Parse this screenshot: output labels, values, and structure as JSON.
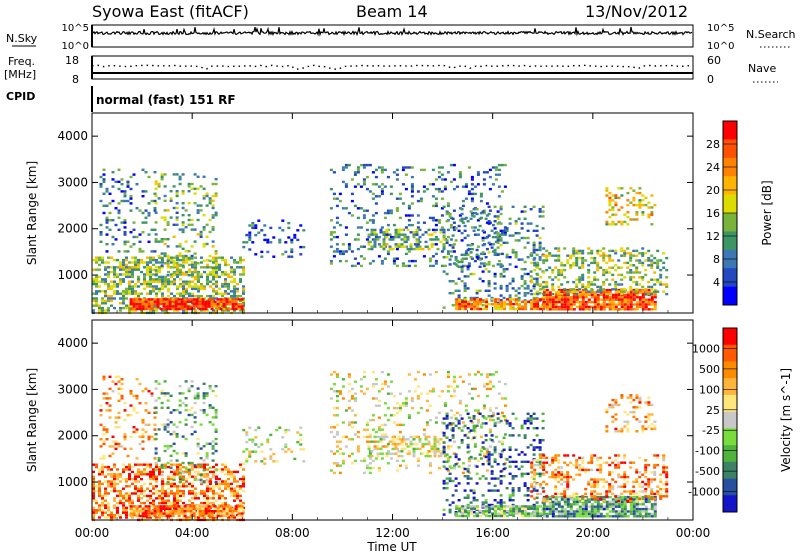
{
  "header": {
    "station": "Syowa East (fitACF)",
    "beam": "Beam 14",
    "date": "13/Nov/2012"
  },
  "noise_panel": {
    "left_label": "N.Sky",
    "right_label": "N.Search",
    "left_ticks": [
      "10^5",
      "10^0"
    ],
    "right_ticks": [
      "10^5",
      "10^0"
    ]
  },
  "freq_panel": {
    "left_label_line1": "Freq.",
    "left_label_line2": "[MHz]",
    "left_ticks": [
      "18",
      "8"
    ],
    "right_label": "Nave",
    "right_ticks": [
      "60",
      "0"
    ]
  },
  "cpid": {
    "label": "CPID",
    "value": "normal (fast) 151 RF"
  },
  "chart_data": [
    {
      "type": "heatmap",
      "name": "power",
      "ylabel": "Slant Range [km]",
      "yticks": [
        1000,
        2000,
        3000,
        4000
      ],
      "ylim": [
        180,
        4500
      ],
      "xlabel": "Time UT",
      "xticks": [
        "00:00",
        "04:00",
        "08:00",
        "12:00",
        "16:00",
        "20:00",
        "00:00"
      ],
      "xlim_hours": [
        0,
        24
      ],
      "colorbar": {
        "label": "Power [dB]",
        "ticks": [
          "4",
          "8",
          "12",
          "16",
          "20",
          "24",
          "28"
        ],
        "colors": [
          "#0000ff",
          "#2448c0",
          "#3c78b4",
          "#3c9664",
          "#78b43c",
          "#dcdc00",
          "#ffb400",
          "#ff8200",
          "#ff5000",
          "#ff0000"
        ]
      },
      "scatter_regions": [
        {
          "t0": 0.0,
          "t1": 6.0,
          "r0": 200,
          "r1": 1400,
          "density": 0.55,
          "level": 0.45
        },
        {
          "t0": 0.3,
          "t1": 2.5,
          "r0": 1500,
          "r1": 3300,
          "density": 0.18,
          "level": 0.25
        },
        {
          "t0": 2.5,
          "t1": 5.0,
          "r0": 1000,
          "r1": 3200,
          "density": 0.2,
          "level": 0.4
        },
        {
          "t0": 6.0,
          "t1": 8.5,
          "r0": 1400,
          "r1": 2200,
          "density": 0.15,
          "level": 0.2
        },
        {
          "t0": 9.5,
          "t1": 16.5,
          "r0": 1200,
          "r1": 3400,
          "density": 0.16,
          "level": 0.25
        },
        {
          "t0": 11.0,
          "t1": 14.0,
          "r0": 1550,
          "r1": 2000,
          "density": 0.5,
          "level": 0.4
        },
        {
          "t0": 14.0,
          "t1": 18.0,
          "r0": 300,
          "r1": 2500,
          "density": 0.22,
          "level": 0.3
        },
        {
          "t0": 14.5,
          "t1": 18.0,
          "r0": 250,
          "r1": 500,
          "density": 0.8,
          "level": 0.75
        },
        {
          "t0": 18.0,
          "t1": 22.5,
          "r0": 250,
          "r1": 700,
          "density": 0.85,
          "level": 0.85
        },
        {
          "t0": 17.5,
          "t1": 23.0,
          "r0": 600,
          "r1": 1600,
          "density": 0.35,
          "level": 0.45
        },
        {
          "t0": 20.5,
          "t1": 22.5,
          "r0": 2100,
          "r1": 2900,
          "density": 0.3,
          "level": 0.6
        },
        {
          "t0": 1.5,
          "t1": 6.0,
          "r0": 250,
          "r1": 500,
          "density": 0.9,
          "level": 0.9
        }
      ]
    },
    {
      "type": "heatmap",
      "name": "velocity",
      "ylabel": "Slant Range [km]",
      "yticks": [
        1000,
        2000,
        3000,
        4000
      ],
      "ylim": [
        180,
        4500
      ],
      "xlabel": "Time UT",
      "xticks": [
        "00:00",
        "04:00",
        "08:00",
        "12:00",
        "16:00",
        "20:00",
        "00:00"
      ],
      "xlim_hours": [
        0,
        24
      ],
      "colorbar": {
        "label": "Velocity [m s^-1]",
        "ticks": [
          "1000",
          "500",
          "100",
          "25",
          "-25",
          "-100",
          "-500",
          "-1000"
        ],
        "colors": [
          "#1414c8",
          "#2850a0",
          "#3c8264",
          "#50b43c",
          "#78dc3c",
          "#c8c8c8",
          "#ffe678",
          "#ffb43c",
          "#ff8c00",
          "#ff5a00",
          "#ff0000"
        ]
      },
      "scatter_regions": [
        {
          "t0": 0.0,
          "t1": 6.0,
          "r0": 200,
          "r1": 1400,
          "density": 0.55,
          "level": 0.8
        },
        {
          "t0": 0.3,
          "t1": 2.5,
          "r0": 1500,
          "r1": 3300,
          "density": 0.18,
          "level": 0.75
        },
        {
          "t0": 2.5,
          "t1": 5.0,
          "r0": 1000,
          "r1": 3200,
          "density": 0.2,
          "level": 0.35
        },
        {
          "t0": 6.0,
          "t1": 8.5,
          "r0": 1400,
          "r1": 2200,
          "density": 0.15,
          "level": 0.5
        },
        {
          "t0": 9.5,
          "t1": 16.5,
          "r0": 1200,
          "r1": 3400,
          "density": 0.16,
          "level": 0.55
        },
        {
          "t0": 11.0,
          "t1": 14.0,
          "r0": 1550,
          "r1": 2000,
          "density": 0.5,
          "level": 0.55
        },
        {
          "t0": 14.0,
          "t1": 18.0,
          "r0": 300,
          "r1": 2500,
          "density": 0.22,
          "level": 0.15
        },
        {
          "t0": 14.5,
          "t1": 18.0,
          "r0": 250,
          "r1": 500,
          "density": 0.8,
          "level": 0.4
        },
        {
          "t0": 18.0,
          "t1": 22.5,
          "r0": 250,
          "r1": 700,
          "density": 0.85,
          "level": 0.3
        },
        {
          "t0": 17.5,
          "t1": 23.0,
          "r0": 600,
          "r1": 1600,
          "density": 0.35,
          "level": 0.75
        },
        {
          "t0": 20.5,
          "t1": 22.5,
          "r0": 2100,
          "r1": 2900,
          "density": 0.3,
          "level": 0.7
        },
        {
          "t0": 1.5,
          "t1": 6.0,
          "r0": 250,
          "r1": 500,
          "density": 0.9,
          "level": 0.8
        }
      ]
    }
  ]
}
